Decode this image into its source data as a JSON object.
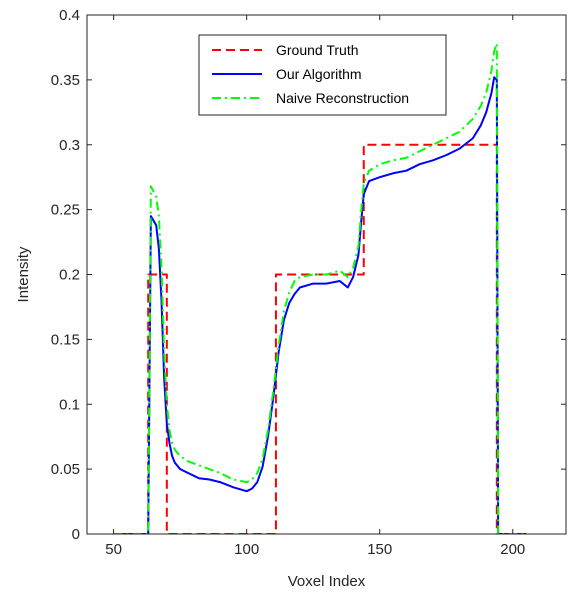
{
  "chart_data": {
    "type": "line",
    "title": "",
    "xlabel": "Voxel Index",
    "ylabel": "Intensity",
    "xlim": [
      40,
      220
    ],
    "ylim": [
      0,
      0.4
    ],
    "xticks": [
      50,
      100,
      150,
      200
    ],
    "xtick_labels": [
      "50",
      "100",
      "150",
      "200"
    ],
    "yticks": [
      0,
      0.05,
      0.1,
      0.15,
      0.2,
      0.25,
      0.3,
      0.35,
      0.4
    ],
    "ytick_labels": [
      "0",
      "0.05",
      "0.1",
      "0.15",
      "0.2",
      "0.25",
      "0.3",
      "0.35",
      "0.4"
    ],
    "grid": false,
    "legend_position": "top-center",
    "series": [
      {
        "name": "Ground Truth",
        "color": "#ff0000",
        "dash": "dashed",
        "x": [
          50,
          63,
          63,
          70,
          70,
          111,
          111,
          144,
          144,
          194,
          194,
          205
        ],
        "y": [
          0,
          0,
          0.2,
          0.2,
          0,
          0,
          0.2,
          0.2,
          0.3,
          0.3,
          0,
          0
        ]
      },
      {
        "name": "Our Algorithm",
        "color": "#0000ff",
        "dash": "solid",
        "x": [
          50,
          63,
          64,
          66,
          67,
          68,
          69,
          70,
          71,
          72,
          73,
          75,
          78,
          82,
          86,
          90,
          95,
          100,
          102,
          104,
          106,
          108,
          110,
          112,
          114,
          116,
          118,
          120,
          125,
          130,
          135,
          138,
          140,
          142,
          143,
          144,
          146,
          150,
          155,
          160,
          165,
          170,
          175,
          180,
          185,
          188,
          190,
          192,
          193,
          194,
          194.5,
          205
        ],
        "y": [
          0,
          0,
          0.245,
          0.238,
          0.22,
          0.18,
          0.12,
          0.085,
          0.07,
          0.06,
          0.055,
          0.05,
          0.047,
          0.043,
          0.042,
          0.04,
          0.036,
          0.033,
          0.035,
          0.04,
          0.052,
          0.075,
          0.105,
          0.14,
          0.165,
          0.178,
          0.185,
          0.19,
          0.193,
          0.193,
          0.195,
          0.19,
          0.198,
          0.215,
          0.24,
          0.262,
          0.272,
          0.275,
          0.278,
          0.28,
          0.285,
          0.288,
          0.292,
          0.297,
          0.305,
          0.315,
          0.325,
          0.34,
          0.352,
          0.35,
          0,
          0
        ]
      },
      {
        "name": "Naive Reconstruction",
        "color": "#00ff00",
        "dash": "dashdot",
        "x": [
          50,
          63,
          64,
          66,
          67,
          68,
          69,
          70,
          71,
          72,
          73,
          75,
          78,
          82,
          86,
          90,
          95,
          100,
          102,
          104,
          106,
          108,
          110,
          112,
          114,
          116,
          118,
          120,
          125,
          130,
          135,
          138,
          140,
          142,
          143,
          144,
          146,
          150,
          155,
          160,
          165,
          170,
          175,
          180,
          185,
          188,
          190,
          192,
          193,
          194,
          194.5,
          205
        ],
        "y": [
          0,
          0,
          0.268,
          0.26,
          0.245,
          0.205,
          0.14,
          0.1,
          0.08,
          0.07,
          0.065,
          0.06,
          0.056,
          0.053,
          0.05,
          0.047,
          0.042,
          0.04,
          0.042,
          0.047,
          0.058,
          0.08,
          0.11,
          0.145,
          0.172,
          0.186,
          0.195,
          0.198,
          0.2,
          0.2,
          0.203,
          0.198,
          0.205,
          0.222,
          0.248,
          0.27,
          0.28,
          0.285,
          0.288,
          0.29,
          0.295,
          0.3,
          0.305,
          0.31,
          0.32,
          0.33,
          0.34,
          0.357,
          0.372,
          0.378,
          0,
          0
        ]
      }
    ]
  }
}
